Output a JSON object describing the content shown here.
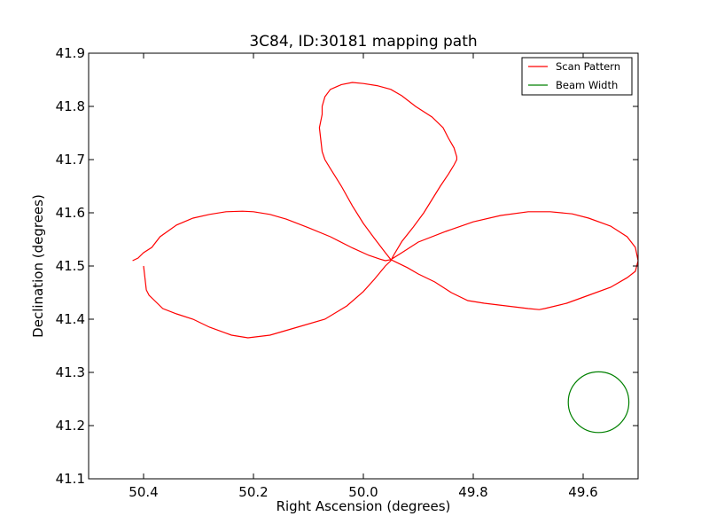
{
  "chart_data": {
    "type": "line",
    "title": "3C84, ID:30181 mapping path",
    "xlabel": "Right Ascension (degrees)",
    "ylabel": "Declination (degrees)",
    "xlim": [
      50.5,
      49.5
    ],
    "ylim": [
      41.1,
      41.9
    ],
    "x_ticks": [
      "50.4",
      "50.2",
      "50.0",
      "49.8",
      "49.6"
    ],
    "x_tick_values": [
      50.4,
      50.2,
      50.0,
      49.8,
      49.6
    ],
    "y_ticks": [
      "41.1",
      "41.2",
      "41.3",
      "41.4",
      "41.5",
      "41.6",
      "41.7",
      "41.8",
      "41.9"
    ],
    "y_tick_values": [
      41.1,
      41.2,
      41.3,
      41.4,
      41.5,
      41.6,
      41.7,
      41.8,
      41.9
    ],
    "grid": false,
    "legend_position": "top-right",
    "series": [
      {
        "name": "Scan Pattern",
        "color": "#ff0000",
        "x": [
          50.42,
          50.41,
          50.4,
          50.385,
          50.37,
          50.34,
          50.31,
          50.28,
          50.25,
          50.22,
          50.2,
          50.17,
          50.14,
          50.1,
          50.06,
          50.02,
          49.99,
          49.97,
          49.96,
          49.95,
          49.93,
          49.9,
          49.85,
          49.8,
          49.75,
          49.7,
          49.66,
          49.62,
          49.59,
          49.55,
          49.52,
          49.505,
          49.5,
          49.505,
          49.52,
          49.55,
          49.59,
          49.63,
          49.67,
          49.68,
          49.7,
          49.74,
          49.78,
          49.81,
          49.84,
          49.87,
          49.9,
          49.92,
          49.94,
          49.95,
          49.96,
          49.98,
          50.0,
          50.02,
          50.04,
          50.06,
          50.07,
          50.075,
          50.08,
          50.075,
          50.075,
          50.07,
          50.06,
          50.04,
          50.02,
          50.0,
          49.975,
          49.95,
          49.93,
          49.905,
          49.875,
          49.855,
          49.845,
          49.835,
          49.83,
          49.83,
          49.835,
          49.845,
          49.86,
          49.875,
          49.89,
          49.91,
          49.93,
          49.945,
          49.95,
          49.96,
          49.98,
          50.0,
          50.03,
          50.07,
          50.12,
          50.17,
          50.21,
          50.24,
          50.28,
          50.31,
          50.34,
          50.365,
          50.38,
          50.39,
          50.395,
          50.4
        ],
        "y": [
          41.51,
          41.515,
          41.525,
          41.535,
          41.555,
          41.577,
          41.59,
          41.597,
          41.602,
          41.603,
          41.602,
          41.597,
          41.588,
          41.572,
          41.555,
          41.534,
          41.52,
          41.513,
          41.51,
          41.512,
          41.525,
          41.545,
          41.565,
          41.583,
          41.595,
          41.602,
          41.602,
          41.598,
          41.59,
          41.575,
          41.555,
          41.535,
          41.51,
          41.49,
          41.478,
          41.46,
          41.445,
          41.43,
          41.42,
          41.418,
          41.42,
          41.425,
          41.43,
          41.435,
          41.45,
          41.47,
          41.485,
          41.497,
          41.507,
          41.512,
          41.525,
          41.552,
          41.58,
          41.613,
          41.65,
          41.683,
          41.7,
          41.715,
          41.76,
          41.785,
          41.8,
          41.818,
          41.832,
          41.841,
          41.845,
          41.843,
          41.839,
          41.832,
          41.82,
          41.8,
          41.78,
          41.76,
          41.74,
          41.722,
          41.705,
          41.7,
          41.69,
          41.673,
          41.65,
          41.625,
          41.6,
          41.572,
          41.546,
          41.52,
          41.51,
          41.5,
          41.475,
          41.452,
          41.425,
          41.4,
          41.385,
          41.37,
          41.365,
          41.37,
          41.385,
          41.4,
          41.41,
          41.42,
          41.435,
          41.445,
          41.455,
          41.5
        ]
      },
      {
        "name": "Beam Width",
        "color": "#008000",
        "shape": "circle",
        "center": [
          49.572,
          41.244
        ],
        "radius_dec": 0.057
      }
    ]
  }
}
